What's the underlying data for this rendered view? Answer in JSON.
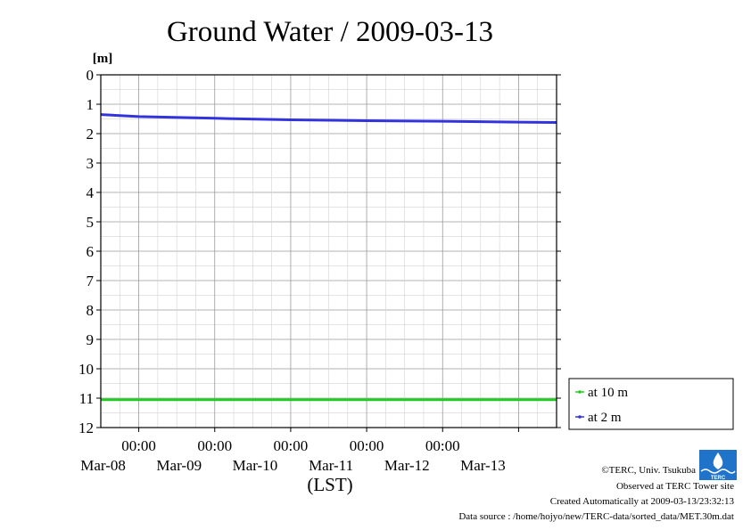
{
  "chart_data": {
    "type": "line",
    "title": "Ground Water / 2009-03-13",
    "ylabel": "[m]",
    "xlabel": "(LST)",
    "ylim": [
      12,
      0
    ],
    "y_inverted": true,
    "grid": true,
    "yticks": [
      "0",
      "1",
      "2",
      "3",
      "4",
      "5",
      "6",
      "7",
      "8",
      "9",
      "10",
      "11",
      "12"
    ],
    "xlim": [
      "2009-03-07T12:00",
      "2009-03-13T12:00"
    ],
    "xticks": [
      {
        "x": "2009-03-08T00:00",
        "time": "00:00",
        "date": "Mar-08"
      },
      {
        "x": "2009-03-09T00:00",
        "time": "00:00",
        "date": "Mar-09"
      },
      {
        "x": "2009-03-10T00:00",
        "time": "00:00",
        "date": "Mar-10"
      },
      {
        "x": "2009-03-11T00:00",
        "time": "00:00",
        "date": "Mar-11"
      },
      {
        "x": "2009-03-12T00:00",
        "time": "00:00",
        "date": "Mar-12"
      },
      {
        "x": "2009-03-13T00:00",
        "time": "",
        "date": "Mar-13"
      }
    ],
    "legend_position": "right-bottom, outside plot",
    "series": [
      {
        "name": "at 10 m",
        "color": "#22cc22",
        "points": [
          {
            "x": "2009-03-07T12:00",
            "y": 11.05
          },
          {
            "x": "2009-03-09T00:00",
            "y": 11.05
          },
          {
            "x": "2009-03-10T12:00",
            "y": 11.05
          },
          {
            "x": "2009-03-12T00:00",
            "y": 11.05
          },
          {
            "x": "2009-03-13T12:00",
            "y": 11.05
          }
        ]
      },
      {
        "name": "at 2 m",
        "color": "#3333dd",
        "points": [
          {
            "x": "2009-03-07T12:00",
            "y": 1.35
          },
          {
            "x": "2009-03-08T00:00",
            "y": 1.42
          },
          {
            "x": "2009-03-09T00:00",
            "y": 1.48
          },
          {
            "x": "2009-03-10T00:00",
            "y": 1.53
          },
          {
            "x": "2009-03-11T00:00",
            "y": 1.56
          },
          {
            "x": "2009-03-12T00:00",
            "y": 1.58
          },
          {
            "x": "2009-03-13T00:00",
            "y": 1.61
          },
          {
            "x": "2009-03-13T12:00",
            "y": 1.62
          }
        ]
      }
    ]
  },
  "credits": {
    "copyright": "©TERC, Univ. Tsukuba",
    "observed": "Observed at TERC Tower site",
    "created": "Created Automatically at 2009-03-13/23:32:13",
    "source": "Data source : /home/hojyo/new/TERC-data/sorted_data/MET.30m.dat"
  },
  "logo": {
    "text": "TERC",
    "icon": "terc-logo-icon"
  }
}
